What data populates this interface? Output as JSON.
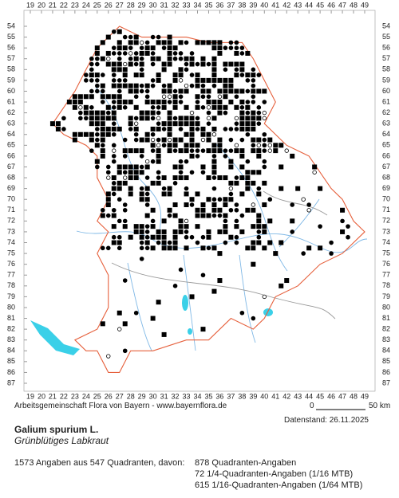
{
  "columns": [
    19,
    20,
    21,
    22,
    23,
    24,
    25,
    26,
    27,
    28,
    29,
    30,
    31,
    32,
    33,
    34,
    35,
    36,
    37,
    38,
    39,
    40,
    41,
    42,
    43,
    44,
    45,
    46,
    47,
    48,
    49
  ],
  "rows": [
    54,
    55,
    56,
    57,
    58,
    59,
    60,
    61,
    62,
    63,
    64,
    65,
    66,
    67,
    68,
    69,
    70,
    71,
    72,
    73,
    74,
    75,
    76,
    77,
    78,
    79,
    80,
    81,
    82,
    83,
    84,
    85,
    86,
    87
  ],
  "footer": {
    "credit": "Arbeitsgemeinschaft Flora von Bayern - www.bayernflora.de",
    "scale_start": "0",
    "scale_end": "50 km",
    "date": "Datenstand: 26.11.2025"
  },
  "species": {
    "name": "Galium spurium L.",
    "common_name": "Grünblütiges Labkraut"
  },
  "stats": {
    "summary": "1573 Angaben aus 547 Quadranten, davon:",
    "line1": "878 Quadranten-Angaben",
    "line2": "72 1/4-Quadranten-Angaben (1/16 MTB)",
    "line3": "615 1/16-Quadranten-Angaben (1/64 MTB)"
  }
}
